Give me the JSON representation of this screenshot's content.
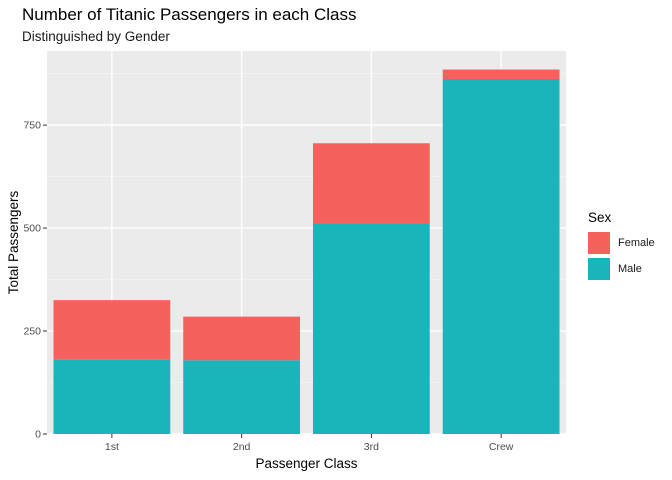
{
  "chart_data": {
    "type": "bar",
    "stacked": true,
    "title": "Number of Titanic Passengers in each Class",
    "subtitle": "Distinguished by Gender",
    "xlabel": "Passenger Class",
    "ylabel": "Total Passengers",
    "categories": [
      "1st",
      "2nd",
      "3rd",
      "Crew"
    ],
    "series": [
      {
        "name": "Male",
        "color": "#19B5BB",
        "values": [
          180,
          179,
          510,
          862
        ]
      },
      {
        "name": "Female",
        "color": "#F5625D",
        "values": [
          145,
          106,
          196,
          23
        ]
      }
    ],
    "ylim": [
      0,
      930
    ],
    "yticks": [
      0,
      250,
      500,
      750
    ],
    "grid": true,
    "legend": {
      "title": "Sex",
      "position": "right",
      "entries": [
        "Female",
        "Male"
      ]
    }
  }
}
